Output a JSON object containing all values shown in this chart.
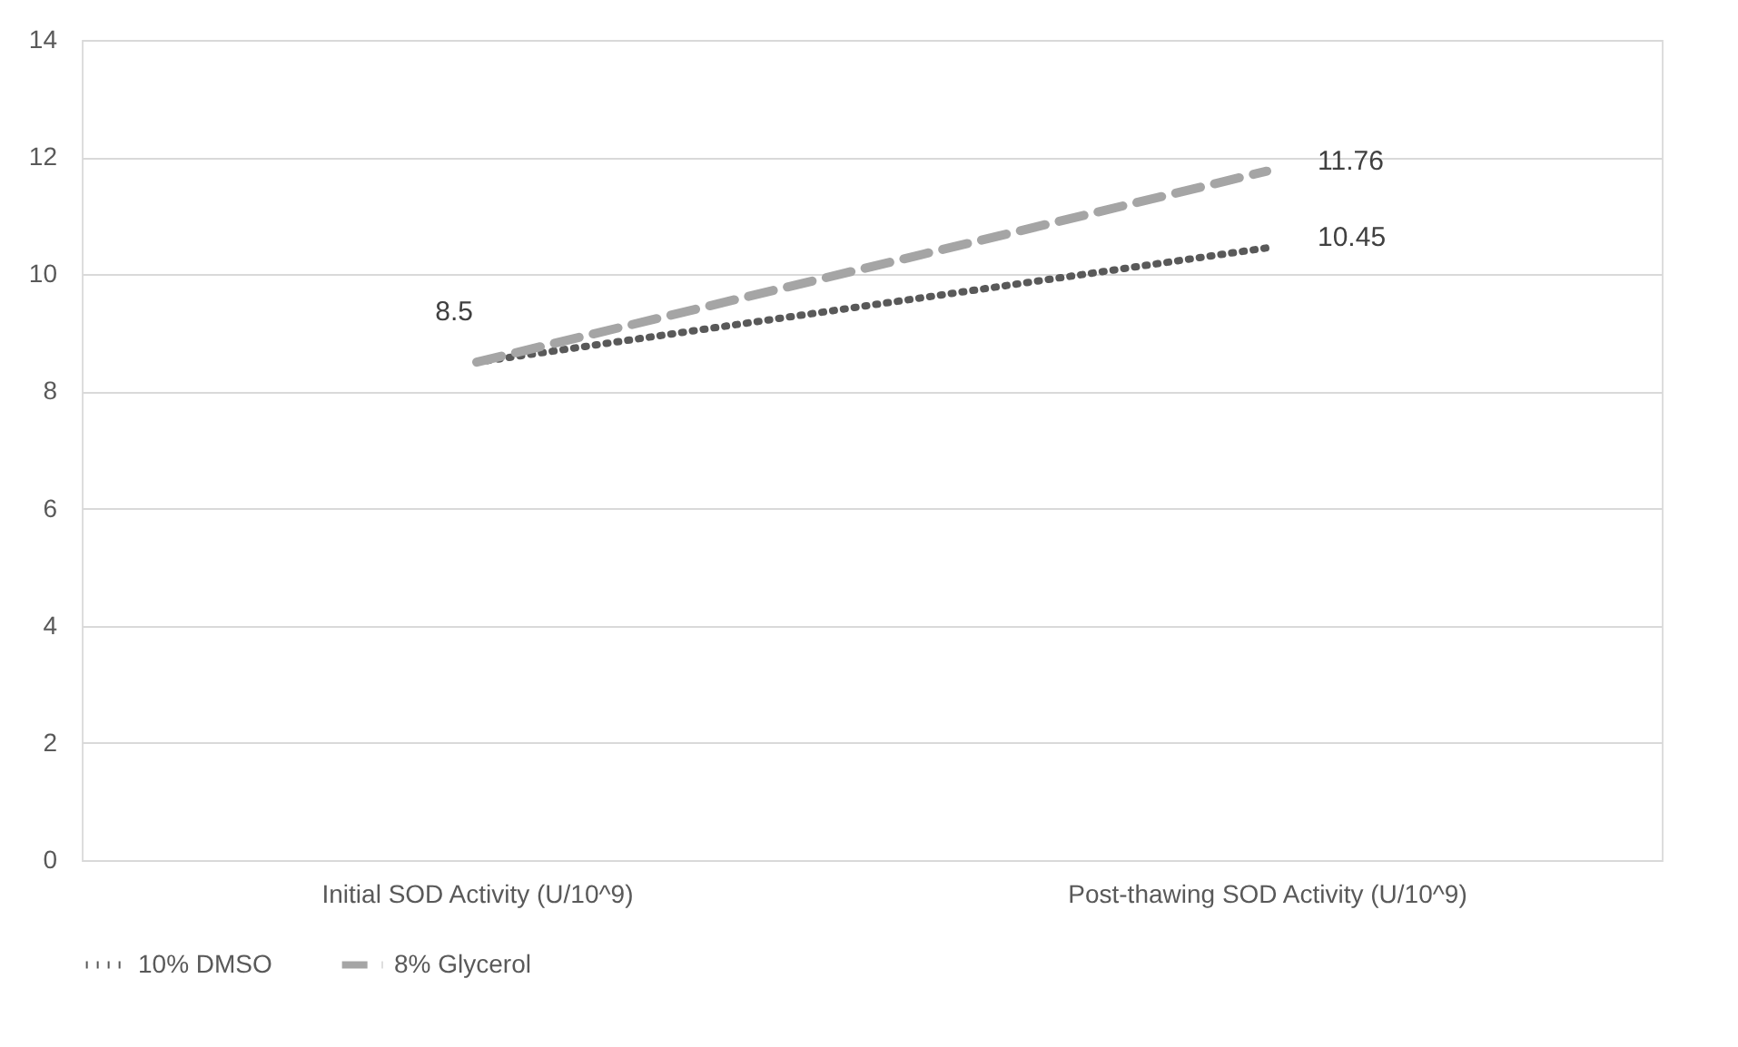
{
  "chart_data": {
    "type": "line",
    "categories": [
      "Initial SOD Activity (U/10^9)",
      "Post-thawing SOD Activity (U/10^9)"
    ],
    "series": [
      {
        "name": "10% DMSO",
        "color": "#595959",
        "line_style": "dotted",
        "values": [
          8.5,
          10.45
        ],
        "value_labels": [
          null,
          "10.45"
        ]
      },
      {
        "name": "8% Glycerol",
        "color": "#a5a5a5",
        "line_style": "dashed",
        "values": [
          8.5,
          11.76
        ],
        "value_labels": [
          "8.5",
          "11.76"
        ]
      }
    ],
    "ylim": [
      0,
      14
    ],
    "yticks": [
      0,
      2,
      4,
      6,
      8,
      10,
      12,
      14
    ],
    "grid": "y",
    "legend": "bottom",
    "marker": "none"
  }
}
